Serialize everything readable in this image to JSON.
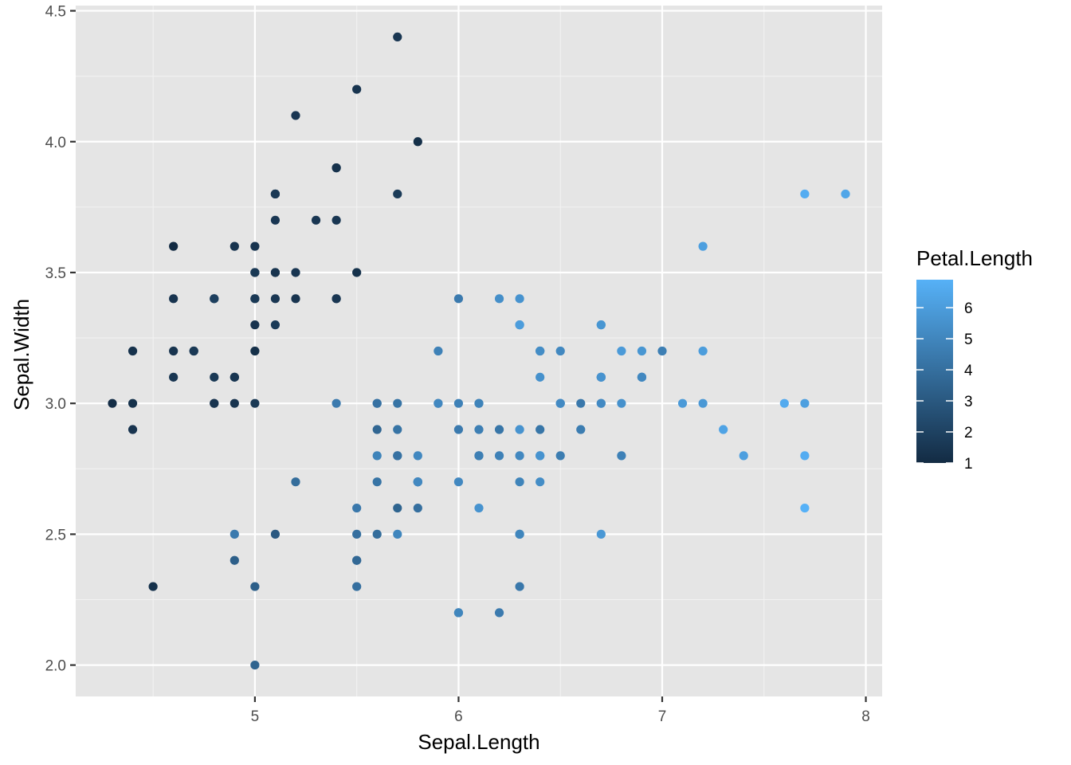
{
  "chart_data": {
    "type": "scatter",
    "xlabel": "Sepal.Length",
    "ylabel": "Sepal.Width",
    "xlim": [
      4.12,
      8.08
    ],
    "ylim": [
      1.88,
      4.52
    ],
    "x_ticks": [
      5,
      6,
      7,
      8
    ],
    "x_tick_labels": [
      "5",
      "6",
      "7",
      "8"
    ],
    "y_ticks": [
      2.0,
      2.5,
      3.0,
      3.5,
      4.0,
      4.5
    ],
    "y_tick_labels": [
      "2.0",
      "2.5",
      "3.0",
      "3.5",
      "4.0",
      "4.5"
    ],
    "grid": true,
    "panel_background": "#e5e5e5",
    "legend": {
      "title": "Petal.Length",
      "position": "right",
      "breaks": [
        1,
        2,
        3,
        4,
        5,
        6
      ],
      "labels": [
        "1",
        "2",
        "3",
        "4",
        "5",
        "6"
      ],
      "range": [
        1.0,
        6.9
      ],
      "low_color": "#132b43",
      "high_color": "#56b1f7"
    },
    "columns": [
      "x",
      "y",
      "color_value"
    ],
    "points": [
      [
        5.1,
        3.5,
        1.4
      ],
      [
        4.9,
        3.0,
        1.4
      ],
      [
        4.7,
        3.2,
        1.3
      ],
      [
        4.6,
        3.1,
        1.5
      ],
      [
        5.0,
        3.6,
        1.4
      ],
      [
        5.4,
        3.9,
        1.7
      ],
      [
        4.6,
        3.4,
        1.4
      ],
      [
        5.0,
        3.4,
        1.5
      ],
      [
        4.4,
        2.9,
        1.4
      ],
      [
        4.9,
        3.1,
        1.5
      ],
      [
        5.4,
        3.7,
        1.5
      ],
      [
        4.8,
        3.4,
        1.6
      ],
      [
        4.8,
        3.0,
        1.4
      ],
      [
        4.3,
        3.0,
        1.1
      ],
      [
        5.8,
        4.0,
        1.2
      ],
      [
        5.7,
        4.4,
        1.5
      ],
      [
        5.4,
        3.9,
        1.3
      ],
      [
        5.1,
        3.5,
        1.4
      ],
      [
        5.7,
        3.8,
        1.7
      ],
      [
        5.1,
        3.8,
        1.5
      ],
      [
        5.4,
        3.4,
        1.7
      ],
      [
        5.1,
        3.7,
        1.5
      ],
      [
        4.6,
        3.6,
        1.0
      ],
      [
        5.1,
        3.3,
        1.7
      ],
      [
        4.8,
        3.4,
        1.9
      ],
      [
        5.0,
        3.0,
        1.6
      ],
      [
        5.0,
        3.4,
        1.6
      ],
      [
        5.2,
        3.5,
        1.5
      ],
      [
        5.2,
        3.4,
        1.4
      ],
      [
        4.7,
        3.2,
        1.6
      ],
      [
        4.8,
        3.1,
        1.6
      ],
      [
        5.4,
        3.4,
        1.5
      ],
      [
        5.2,
        4.1,
        1.5
      ],
      [
        5.5,
        4.2,
        1.4
      ],
      [
        4.9,
        3.1,
        1.5
      ],
      [
        5.0,
        3.2,
        1.2
      ],
      [
        5.5,
        3.5,
        1.3
      ],
      [
        4.9,
        3.6,
        1.4
      ],
      [
        4.4,
        3.0,
        1.3
      ],
      [
        5.1,
        3.4,
        1.5
      ],
      [
        5.0,
        3.5,
        1.3
      ],
      [
        4.5,
        2.3,
        1.3
      ],
      [
        4.4,
        3.2,
        1.3
      ],
      [
        5.0,
        3.5,
        1.6
      ],
      [
        5.1,
        3.8,
        1.9
      ],
      [
        4.8,
        3.0,
        1.4
      ],
      [
        5.1,
        3.8,
        1.6
      ],
      [
        4.6,
        3.2,
        1.4
      ],
      [
        5.3,
        3.7,
        1.5
      ],
      [
        5.0,
        3.3,
        1.4
      ],
      [
        7.0,
        3.2,
        4.7
      ],
      [
        6.4,
        3.2,
        4.5
      ],
      [
        6.9,
        3.1,
        4.9
      ],
      [
        5.5,
        2.3,
        4.0
      ],
      [
        6.5,
        2.8,
        4.6
      ],
      [
        5.7,
        2.8,
        4.5
      ],
      [
        6.3,
        3.3,
        4.7
      ],
      [
        4.9,
        2.4,
        3.3
      ],
      [
        6.6,
        2.9,
        4.6
      ],
      [
        5.2,
        2.7,
        3.9
      ],
      [
        5.0,
        2.0,
        3.5
      ],
      [
        5.9,
        3.0,
        4.2
      ],
      [
        6.0,
        2.2,
        4.0
      ],
      [
        6.1,
        2.9,
        4.7
      ],
      [
        5.6,
        2.9,
        3.6
      ],
      [
        6.7,
        3.1,
        4.4
      ],
      [
        5.6,
        3.0,
        4.5
      ],
      [
        5.8,
        2.7,
        4.1
      ],
      [
        6.2,
        2.2,
        4.5
      ],
      [
        5.6,
        2.5,
        3.9
      ],
      [
        5.9,
        3.2,
        4.8
      ],
      [
        6.1,
        2.8,
        4.0
      ],
      [
        6.3,
        2.5,
        4.9
      ],
      [
        6.1,
        2.8,
        4.7
      ],
      [
        6.4,
        2.9,
        4.3
      ],
      [
        6.6,
        3.0,
        4.4
      ],
      [
        6.8,
        2.8,
        4.8
      ],
      [
        6.7,
        3.0,
        5.0
      ],
      [
        6.0,
        2.9,
        4.5
      ],
      [
        5.7,
        2.6,
        3.5
      ],
      [
        5.5,
        2.4,
        3.8
      ],
      [
        5.5,
        2.4,
        3.7
      ],
      [
        5.8,
        2.7,
        3.9
      ],
      [
        6.0,
        2.7,
        5.1
      ],
      [
        5.4,
        3.0,
        4.5
      ],
      [
        6.0,
        3.4,
        4.5
      ],
      [
        6.7,
        3.1,
        4.7
      ],
      [
        6.3,
        2.3,
        4.4
      ],
      [
        5.6,
        3.0,
        4.1
      ],
      [
        5.5,
        2.5,
        4.0
      ],
      [
        5.5,
        2.6,
        4.4
      ],
      [
        6.1,
        3.0,
        4.6
      ],
      [
        5.8,
        2.6,
        4.0
      ],
      [
        5.0,
        2.3,
        3.3
      ],
      [
        5.6,
        2.7,
        4.2
      ],
      [
        5.7,
        3.0,
        4.2
      ],
      [
        5.7,
        2.9,
        4.2
      ],
      [
        6.2,
        2.9,
        4.3
      ],
      [
        5.1,
        2.5,
        3.0
      ],
      [
        5.7,
        2.8,
        4.1
      ],
      [
        6.3,
        3.3,
        6.0
      ],
      [
        5.8,
        2.7,
        5.1
      ],
      [
        7.1,
        3.0,
        5.9
      ],
      [
        6.3,
        2.9,
        5.6
      ],
      [
        6.5,
        3.0,
        5.8
      ],
      [
        7.6,
        3.0,
        6.6
      ],
      [
        4.9,
        2.5,
        4.5
      ],
      [
        7.3,
        2.9,
        6.3
      ],
      [
        6.7,
        2.5,
        5.8
      ],
      [
        7.2,
        3.6,
        6.1
      ],
      [
        6.5,
        3.2,
        5.1
      ],
      [
        6.4,
        2.7,
        5.3
      ],
      [
        6.8,
        3.0,
        5.5
      ],
      [
        5.7,
        2.5,
        5.0
      ],
      [
        5.8,
        2.8,
        5.1
      ],
      [
        6.4,
        3.2,
        5.3
      ],
      [
        6.5,
        3.0,
        5.5
      ],
      [
        7.7,
        3.8,
        6.7
      ],
      [
        7.7,
        2.6,
        6.9
      ],
      [
        6.0,
        2.2,
        5.0
      ],
      [
        6.9,
        3.2,
        5.7
      ],
      [
        5.6,
        2.8,
        4.9
      ],
      [
        7.7,
        2.8,
        6.7
      ],
      [
        6.3,
        2.7,
        4.9
      ],
      [
        6.7,
        3.3,
        5.7
      ],
      [
        7.2,
        3.2,
        6.0
      ],
      [
        6.2,
        2.8,
        4.8
      ],
      [
        6.1,
        3.0,
        4.9
      ],
      [
        6.4,
        2.8,
        5.6
      ],
      [
        7.2,
        3.0,
        5.8
      ],
      [
        7.4,
        2.8,
        6.1
      ],
      [
        7.9,
        3.8,
        6.4
      ],
      [
        6.4,
        2.8,
        5.6
      ],
      [
        6.3,
        2.8,
        5.1
      ],
      [
        6.1,
        2.6,
        5.6
      ],
      [
        7.7,
        3.0,
        6.1
      ],
      [
        6.3,
        3.4,
        5.6
      ],
      [
        6.4,
        3.1,
        5.5
      ],
      [
        6.0,
        3.0,
        4.8
      ],
      [
        6.9,
        3.1,
        5.4
      ],
      [
        6.7,
        3.1,
        5.6
      ],
      [
        6.9,
        3.1,
        5.1
      ],
      [
        5.8,
        2.7,
        5.1
      ],
      [
        6.8,
        3.2,
        5.9
      ],
      [
        6.7,
        3.3,
        5.7
      ],
      [
        6.7,
        3.0,
        5.2
      ],
      [
        6.3,
        2.5,
        5.0
      ],
      [
        6.5,
        3.0,
        5.2
      ],
      [
        6.2,
        3.4,
        5.4
      ],
      [
        5.9,
        3.0,
        5.1
      ]
    ]
  }
}
